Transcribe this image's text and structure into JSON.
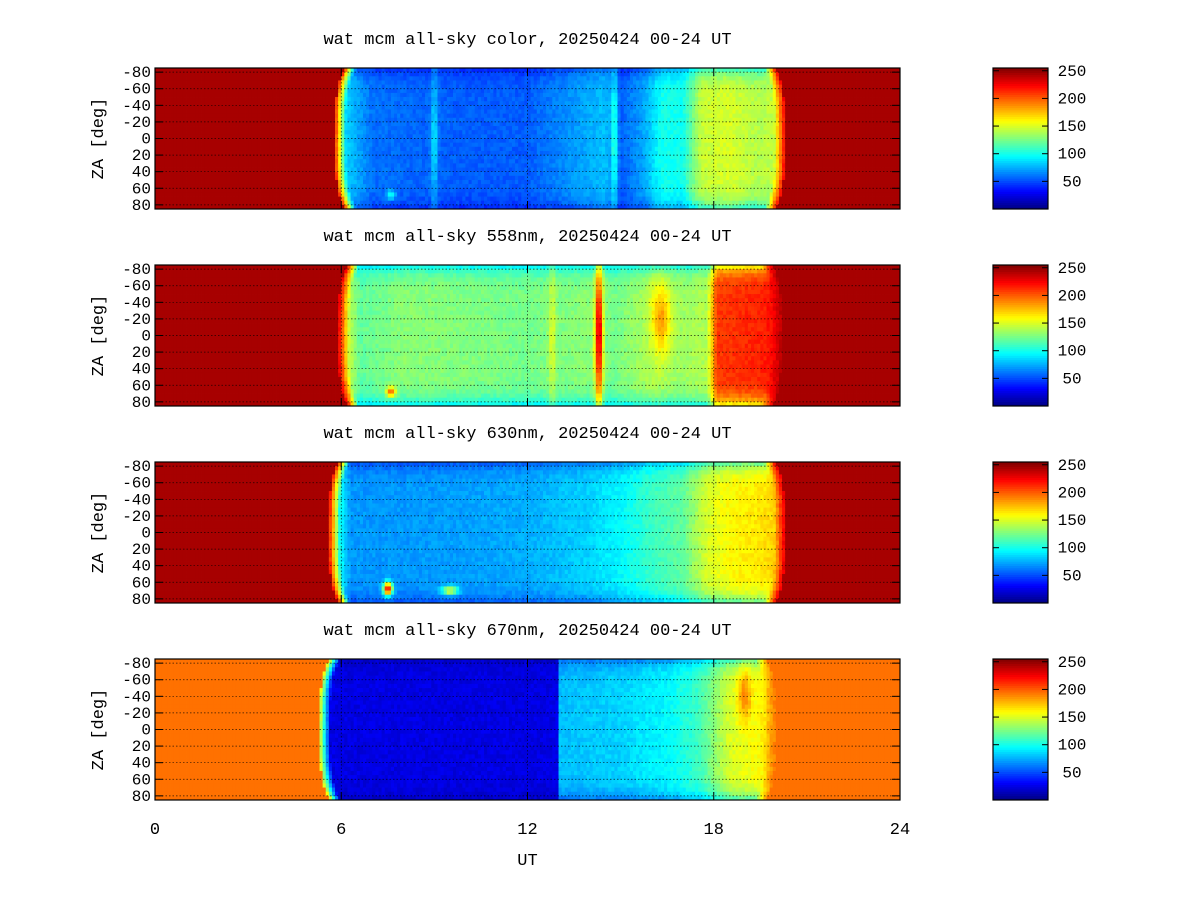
{
  "colorbar_ticks": [
    50,
    100,
    150,
    200,
    250
  ],
  "chart_data": [
    {
      "type": "heatmap",
      "title": "wat mcm all-sky color, 20250424 00-24 UT",
      "ylabel": "ZA [deg]",
      "yticks": [
        -80,
        -60,
        -40,
        -20,
        0,
        20,
        40,
        60,
        80
      ],
      "ytick_labels": [
        "-80",
        "-60",
        "-40",
        "-20",
        "0",
        "20",
        "40",
        "60",
        "80"
      ],
      "xlim": [
        0,
        24
      ],
      "ylim": [
        -85,
        85
      ],
      "clim": [
        0,
        255
      ],
      "colorscale": "jet",
      "sunset_ut": 5.8,
      "sunrise_ut": 20.3,
      "day_value": 245,
      "night_profile": [
        [
          5.8,
          95
        ],
        [
          7,
          60
        ],
        [
          10,
          55
        ],
        [
          12,
          55
        ],
        [
          14.5,
          80
        ],
        [
          15,
          55
        ],
        [
          15.8,
          75
        ],
        [
          16.3,
          100
        ],
        [
          17,
          100
        ],
        [
          17.6,
          145
        ],
        [
          18.5,
          150
        ],
        [
          19.5,
          140
        ],
        [
          20.3,
          150
        ]
      ],
      "features": [
        {
          "t": 9.0,
          "za": 0,
          "dt": 0.1,
          "dza": 85,
          "val": 90
        },
        {
          "t": 14.8,
          "za": 0,
          "dt": 0.1,
          "dza": 85,
          "val": 110
        },
        {
          "t": 7.6,
          "za": 68,
          "dt": 0.15,
          "dza": 6,
          "val": 100
        }
      ]
    },
    {
      "type": "heatmap",
      "title": "wat mcm all-sky 558nm, 20250424 00-24 UT",
      "ylabel": "ZA [deg]",
      "yticks": [
        -80,
        -60,
        -40,
        -20,
        0,
        20,
        40,
        60,
        80
      ],
      "ytick_labels": [
        "-80",
        "-60",
        "-40",
        "-20",
        "0",
        "20",
        "40",
        "60",
        "80"
      ],
      "xlim": [
        0,
        24
      ],
      "ylim": [
        -85,
        85
      ],
      "clim": [
        0,
        255
      ],
      "colorscale": "jet",
      "sunset_ut": 5.9,
      "sunrise_ut": 20.2,
      "day_value": 245,
      "night_profile": [
        [
          5.9,
          170
        ],
        [
          6.6,
          120
        ],
        [
          8,
          130
        ],
        [
          10,
          128
        ],
        [
          12,
          125
        ],
        [
          14,
          130
        ],
        [
          14.8,
          125
        ],
        [
          16,
          140
        ],
        [
          17,
          135
        ],
        [
          17.8,
          140
        ],
        [
          18.1,
          210
        ],
        [
          19.5,
          215
        ],
        [
          20.2,
          225
        ]
      ],
      "features": [
        {
          "t": 14.3,
          "za": 0,
          "dt": 0.12,
          "dza": 85,
          "val": 240
        },
        {
          "t": 12.8,
          "za": 0,
          "dt": 0.12,
          "dza": 85,
          "val": 150
        },
        {
          "t": 16.3,
          "za": -20,
          "dt": 0.3,
          "dza": 40,
          "val": 185
        },
        {
          "t": 7.6,
          "za": 68,
          "dt": 0.15,
          "dza": 6,
          "val": 200
        }
      ]
    },
    {
      "type": "heatmap",
      "title": "wat mcm all-sky 630nm, 20250424 00-24 UT",
      "ylabel": "ZA [deg]",
      "yticks": [
        -80,
        -60,
        -40,
        -20,
        0,
        20,
        40,
        60,
        80
      ],
      "ytick_labels": [
        "-80",
        "-60",
        "-40",
        "-20",
        "0",
        "20",
        "40",
        "60",
        "80"
      ],
      "xlim": [
        0,
        24
      ],
      "ylim": [
        -85,
        85
      ],
      "clim": [
        0,
        255
      ],
      "colorscale": "jet",
      "sunset_ut": 5.6,
      "sunrise_ut": 20.3,
      "day_value": 245,
      "night_profile": [
        [
          5.6,
          130
        ],
        [
          6.3,
          70
        ],
        [
          8,
          70
        ],
        [
          10,
          72
        ],
        [
          12,
          75
        ],
        [
          14,
          85
        ],
        [
          15,
          95
        ],
        [
          16,
          110
        ],
        [
          17,
          120
        ],
        [
          17.8,
          150
        ],
        [
          18.5,
          160
        ],
        [
          19.5,
          165
        ],
        [
          20.3,
          175
        ]
      ],
      "features": [
        {
          "t": 7.5,
          "za": 68,
          "dt": 0.15,
          "dza": 8,
          "val": 230
        },
        {
          "t": 9.5,
          "za": 70,
          "dt": 0.25,
          "dza": 5,
          "val": 160
        }
      ]
    },
    {
      "type": "heatmap",
      "title": "wat mcm all-sky 670nm, 20250424 00-24 UT",
      "ylabel": "ZA [deg]",
      "xlabel": "UT",
      "xticks": [
        0,
        6,
        12,
        18,
        24
      ],
      "xtick_labels": [
        "0",
        "6",
        "12",
        "18",
        "24"
      ],
      "yticks": [
        -80,
        -60,
        -40,
        -20,
        0,
        20,
        40,
        60,
        80
      ],
      "ytick_labels": [
        "-80",
        "-60",
        "-40",
        "-20",
        "0",
        "20",
        "40",
        "60",
        "80"
      ],
      "xlim": [
        0,
        24
      ],
      "ylim": [
        -85,
        85
      ],
      "clim": [
        0,
        255
      ],
      "colorscale": "jet",
      "sunset_ut": 5.3,
      "sunrise_ut": 20.0,
      "day_value": 195,
      "night_profile": [
        [
          5.3,
          25
        ],
        [
          13.0,
          25
        ],
        [
          13.05,
          80
        ],
        [
          15,
          85
        ],
        [
          16.5,
          95
        ],
        [
          17.5,
          110
        ],
        [
          18.5,
          150
        ],
        [
          19.5,
          160
        ],
        [
          20.0,
          180
        ]
      ],
      "features": [
        {
          "t": 19.0,
          "za": -40,
          "dt": 0.2,
          "dza": 30,
          "val": 190
        }
      ]
    }
  ]
}
